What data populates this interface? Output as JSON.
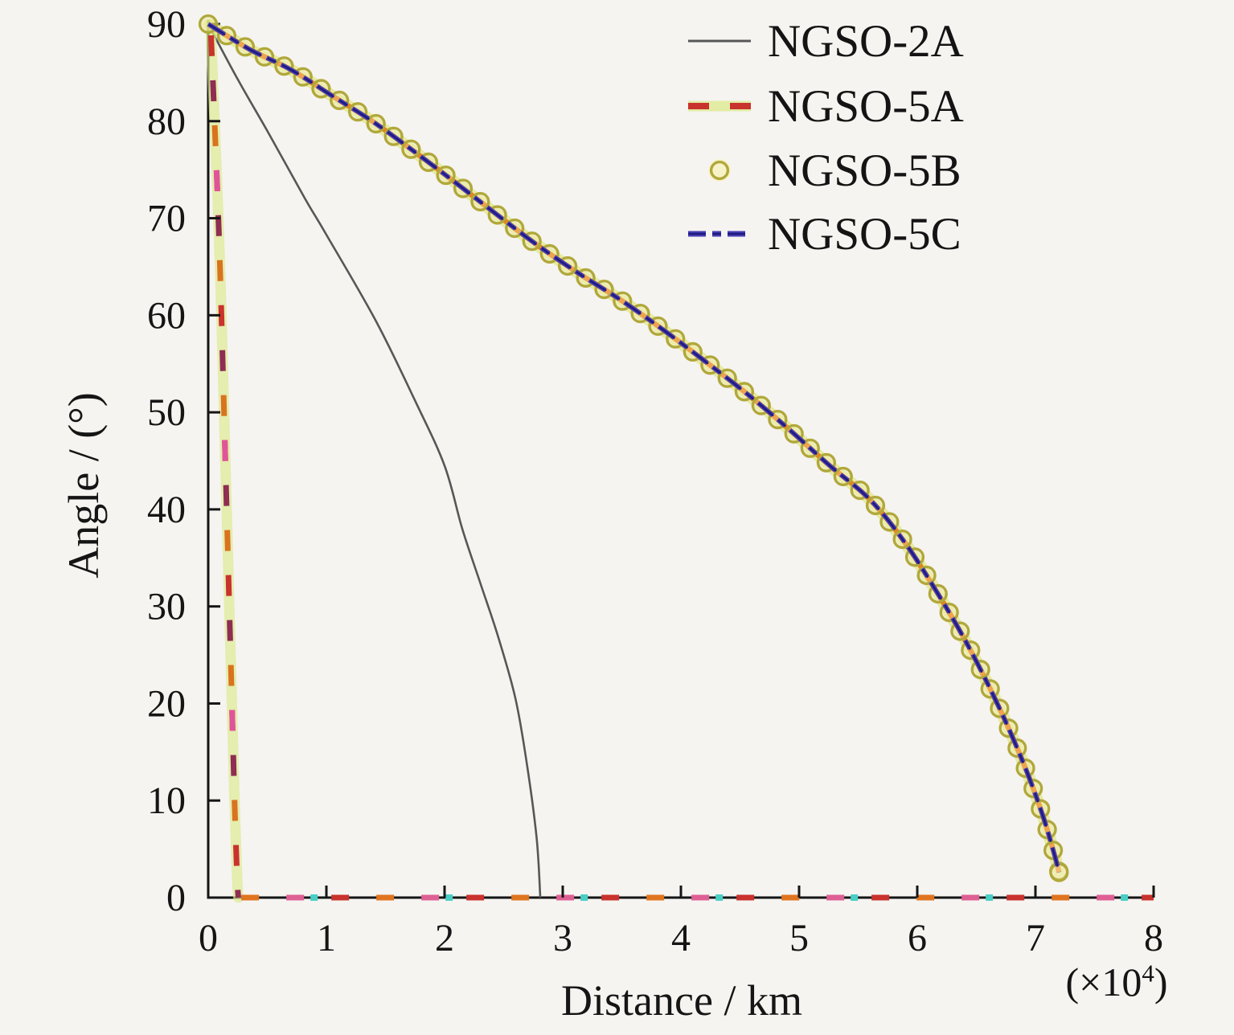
{
  "figure": {
    "xlabel": "Distance / km",
    "ylabel": "Angle / (°)",
    "multiplier_prefix": "(×10",
    "multiplier_exponent": "4",
    "multiplier_suffix": ")",
    "background_color": "#f5f4f1",
    "axis_color": "#151515"
  },
  "chart_data": {
    "type": "line",
    "title": "",
    "xlabel": "Distance / km",
    "ylabel": "Angle / (°)",
    "x_unit_multiplier": "(×10⁴)",
    "xlim": [
      0,
      8
    ],
    "ylim": [
      0,
      90
    ],
    "xticks": [
      0,
      1,
      2,
      3,
      4,
      5,
      6,
      7,
      8
    ],
    "yticks": [
      0,
      10,
      20,
      30,
      40,
      50,
      60,
      70,
      80,
      90
    ],
    "grid": false,
    "legend_position": "top-right",
    "series": [
      {
        "name": "NGSO-2A",
        "type": "line",
        "line_style": "solid",
        "color": "#575757",
        "width": 2.6,
        "points": [
          [
            0,
            90
          ],
          [
            0.25,
            84.3
          ],
          [
            0.5,
            79
          ],
          [
            0.82,
            72
          ],
          [
            1,
            68.3
          ],
          [
            1.42,
            59.4
          ],
          [
            1.75,
            51.2
          ],
          [
            2,
            44.5
          ],
          [
            2.15,
            38
          ],
          [
            2.3,
            32.5
          ],
          [
            2.45,
            27
          ],
          [
            2.6,
            20.5
          ],
          [
            2.7,
            13.5
          ],
          [
            2.78,
            6
          ],
          [
            2.81,
            0
          ]
        ]
      },
      {
        "name": "NGSO-5A",
        "type": "line",
        "line_style": "dashed",
        "color": "#c9322d",
        "dash_colors": [
          "#c9322d",
          "#8f2d52",
          "#d9731f",
          "#e0559a"
        ],
        "glow_color": "#dcea8c",
        "width": 7,
        "points": [
          [
            0.02,
            90
          ],
          [
            0.05,
            81
          ],
          [
            0.08,
            72
          ],
          [
            0.105,
            63
          ],
          [
            0.125,
            54
          ],
          [
            0.145,
            45
          ],
          [
            0.165,
            36
          ],
          [
            0.185,
            27
          ],
          [
            0.205,
            18
          ],
          [
            0.225,
            9
          ],
          [
            0.245,
            2
          ],
          [
            0.255,
            0
          ]
        ],
        "zero_elevation_tail": [
          [
            0.28,
            0
          ],
          [
            8,
            0
          ]
        ]
      },
      {
        "name": "NGSO-5B",
        "type": "line+markers",
        "marker": "circle",
        "marker_edge_color": "#b1a83b",
        "marker_fill": "#f7f3c4",
        "line_color": "#e8821e",
        "glow_color": "#d7e24f",
        "points": [
          [
            0,
            90
          ],
          [
            0.35,
            87.4
          ],
          [
            0.7,
            85.3
          ],
          [
            1.05,
            82.6
          ],
          [
            1.4,
            79.9
          ],
          [
            1.75,
            76.8
          ],
          [
            2.1,
            73.6
          ],
          [
            2.45,
            70.3
          ],
          [
            2.8,
            67.1
          ],
          [
            3.15,
            64.2
          ],
          [
            3.5,
            61.5
          ],
          [
            3.85,
            58.5
          ],
          [
            4.2,
            55.3
          ],
          [
            4.55,
            52
          ],
          [
            4.9,
            48.4
          ],
          [
            5.25,
            44.6
          ],
          [
            5.6,
            41
          ],
          [
            5.9,
            36.5
          ],
          [
            6.2,
            30.8
          ],
          [
            6.45,
            25.5
          ],
          [
            6.7,
            19.4
          ],
          [
            6.9,
            13.8
          ],
          [
            7.05,
            8.9
          ],
          [
            7.15,
            4.9
          ],
          [
            7.2,
            2.6
          ]
        ]
      },
      {
        "name": "NGSO-5C",
        "type": "line",
        "line_style": "dashdot",
        "color": "#473cb4",
        "core_color": "#1f1a7e",
        "width": 5.6,
        "points": [
          [
            0,
            90
          ],
          [
            0.35,
            87.4
          ],
          [
            0.7,
            85.3
          ],
          [
            1.05,
            82.6
          ],
          [
            1.4,
            79.9
          ],
          [
            1.75,
            76.8
          ],
          [
            2.1,
            73.6
          ],
          [
            2.45,
            70.3
          ],
          [
            2.8,
            67.1
          ],
          [
            3.15,
            64.2
          ],
          [
            3.5,
            61.5
          ],
          [
            3.85,
            58.5
          ],
          [
            4.2,
            55.3
          ],
          [
            4.55,
            52
          ],
          [
            4.9,
            48.4
          ],
          [
            5.25,
            44.6
          ],
          [
            5.6,
            41
          ],
          [
            5.9,
            36.5
          ],
          [
            6.2,
            30.8
          ],
          [
            6.45,
            25.5
          ],
          [
            6.7,
            19.4
          ],
          [
            6.9,
            13.8
          ],
          [
            7.05,
            8.9
          ],
          [
            7.15,
            4.9
          ],
          [
            7.2,
            2.6
          ]
        ]
      }
    ],
    "baseline_overlap": {
      "y": 0,
      "x_range": [
        0.28,
        8
      ],
      "colors": {
        "orange": "#e0741f",
        "pink": "#de5f94",
        "red": "#c9322d",
        "cyan": "#49cfc5"
      }
    }
  }
}
